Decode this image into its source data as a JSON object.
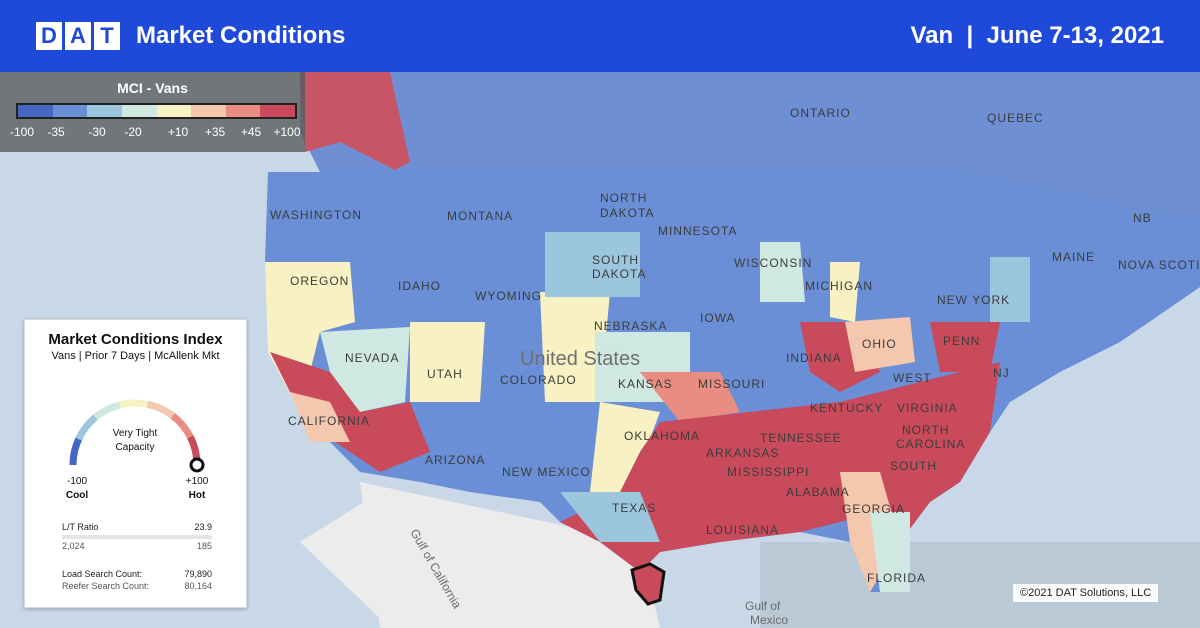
{
  "header": {
    "logo_letters": [
      "D",
      "A",
      "T"
    ],
    "title": "Market Conditions",
    "subtitle": "Van  |  June 7-13, 2021"
  },
  "legend": {
    "title": "MCI - Vans",
    "colors": [
      "#4766c2",
      "#6a8fd6",
      "#9cc5de",
      "#cfe9e2",
      "#f7f1c4",
      "#f4c8ae",
      "#e98d82",
      "#c84a5b"
    ],
    "ticks": [
      "-100",
      "-35",
      "-30",
      "-20",
      "+10",
      "+35",
      "+45",
      "+100"
    ]
  },
  "card": {
    "title": "Market Conditions Index",
    "subtitle": "Vans | Prior 7 Days | McAllenk Mkt",
    "gauge_value_fraction": 1.0,
    "gauge_label_line1": "Very Tight",
    "gauge_label_line2": "Capacity",
    "min_value": "-100",
    "min_label": "Cool",
    "max_value": "+100",
    "max_label": "Hot",
    "lt_ratio_label": "L/T Ratio",
    "lt_ratio_value": "23.9",
    "row2_left": "2,024",
    "row2_right": "185",
    "load_search_label": "Load Search Count:",
    "load_search_value": "79,890",
    "reefer_search_label": "Reefer Search Count:",
    "reefer_search_value": "80,164"
  },
  "map_labels": {
    "ontario": "ONTARIO",
    "quebec": "QUEBEC",
    "north_dakota_1": "NORTH",
    "north_dakota_2": "DAKOTA",
    "montana": "MONTANA",
    "washington": "WASHINGTON",
    "minnesota": "MINNESOTA",
    "oregon": "OREGON",
    "idaho": "IDAHO",
    "wyoming": "WYOMING",
    "south_dakota_1": "SOUTH",
    "south_dakota_2": "DAKOTA",
    "wisconsin": "WISCONSIN",
    "michigan": "MICHIGAN",
    "iowa": "IOWA",
    "nebraska": "NEBRASKA",
    "nevada": "NEVADA",
    "utah": "UTAH",
    "colorado": "COLORADO",
    "united_states": "United States",
    "kansas": "KANSAS",
    "missouri": "MISSOURI",
    "indiana": "INDIANA",
    "ohio": "OHIO",
    "penn": "PENN",
    "new_york": "NEW YORK",
    "maine": "MAINE",
    "nova_scotia": "NOVA SCOTIA",
    "nb": "NB",
    "california": "CALIFORNIA",
    "arizona": "ARIZONA",
    "new_mexico": "NEW MEXICO",
    "oklahoma": "OKLAHOMA",
    "arkansas": "ARKANSAS",
    "tennessee": "TENNESSEE",
    "kentucky": "KENTUCKY",
    "virginia": "VIRGINIA",
    "west_virginia": "WEST",
    "north_carolina_1": "NORTH",
    "north_carolina_2": "CAROLINA",
    "south_carolina": "SOUTH",
    "mississippi": "MISSISSIPPI",
    "alabama": "ALABAMA",
    "georgia": "GEORGIA",
    "texas": "TEXAS",
    "louisiana": "LOUISIANA",
    "florida": "FLORIDA",
    "nj": "NJ",
    "gulf_california": "Gulf of California",
    "gulf_mexico_1": "Gulf of",
    "gulf_mexico_2": "Mexico"
  },
  "copyright": "©2021 DAT Solutions, LLC"
}
